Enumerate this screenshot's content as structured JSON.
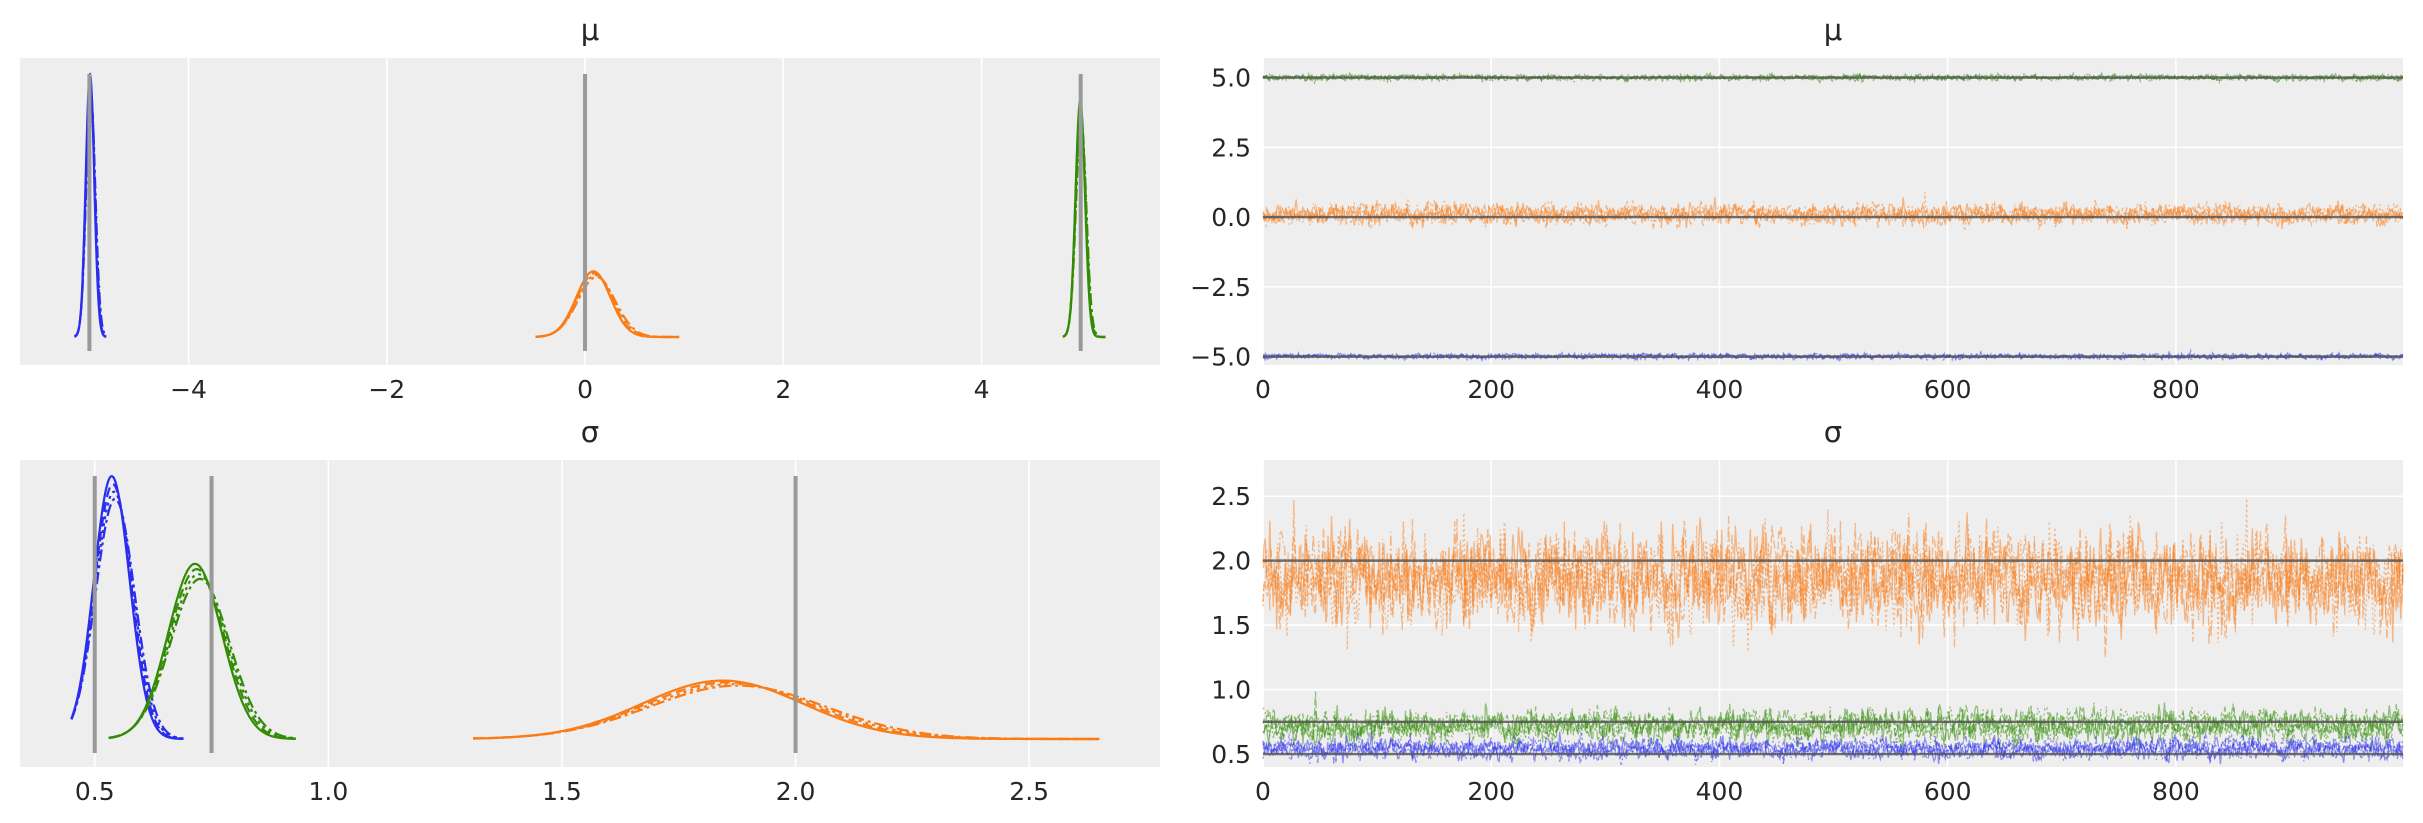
{
  "chart_data": [
    {
      "type": "density",
      "title": "μ",
      "xlim": [
        -5.7,
        5.8
      ],
      "xticks": [
        -4,
        -2,
        0,
        2,
        4
      ],
      "xtick_labels": [
        "−4",
        "−2",
        "0",
        "2",
        "4"
      ],
      "yticks_visible": false,
      "grid": true,
      "series": [
        {
          "color": "#2a2eec",
          "mean": -4.99,
          "sd": 0.045,
          "range": [
            -5.15,
            -4.83
          ],
          "ref": -5.0
        },
        {
          "color": "#fa7c17",
          "mean": 0.1,
          "sd": 0.18,
          "range": [
            -0.5,
            0.95
          ],
          "ref": 0.0
        },
        {
          "color": "#328c06",
          "mean": 5.0,
          "sd": 0.05,
          "range": [
            4.82,
            5.25
          ],
          "ref": 5.0
        }
      ]
    },
    {
      "type": "trace",
      "title": "μ",
      "xlim": [
        0,
        999
      ],
      "ylim": [
        -5.3,
        5.7
      ],
      "xticks": [
        0,
        200,
        400,
        600,
        800
      ],
      "yticks": [
        -5.0,
        -2.5,
        0.0,
        2.5,
        5.0
      ],
      "ytick_labels": [
        "−5.0",
        "−2.5",
        "0.0",
        "2.5",
        "5.0"
      ],
      "grid": true,
      "draws": 1000,
      "series": [
        {
          "color": "#328c06",
          "mean": 5.0,
          "sd": 0.05,
          "ref": 5.0
        },
        {
          "color": "#fa7c17",
          "mean": 0.1,
          "sd": 0.18,
          "ref": 0.0
        },
        {
          "color": "#2a2eec",
          "mean": -4.99,
          "sd": 0.045,
          "ref": -5.0
        }
      ]
    },
    {
      "type": "density",
      "title": "σ",
      "xlim": [
        0.34,
        2.78
      ],
      "xticks": [
        0.5,
        1.0,
        1.5,
        2.0,
        2.5
      ],
      "xtick_labels": [
        "0.5",
        "1.0",
        "1.5",
        "2.0",
        "2.5"
      ],
      "yticks_visible": false,
      "grid": true,
      "series": [
        {
          "color": "#2a2eec",
          "mean": 0.54,
          "sd": 0.04,
          "range": [
            0.45,
            0.69
          ],
          "ref": 0.5
        },
        {
          "color": "#328c06",
          "mean": 0.72,
          "sd": 0.06,
          "range": [
            0.53,
            0.93
          ],
          "ref": 0.75
        },
        {
          "color": "#fa7c17",
          "mean": 1.86,
          "sd": 0.18,
          "range": [
            1.31,
            2.65
          ],
          "ref": 2.0
        }
      ]
    },
    {
      "type": "trace",
      "title": "σ",
      "xlim": [
        0,
        999
      ],
      "ylim": [
        0.4,
        2.78
      ],
      "xticks": [
        0,
        200,
        400,
        600,
        800
      ],
      "yticks": [
        0.5,
        1.0,
        1.5,
        2.0,
        2.5
      ],
      "ytick_labels": [
        "0.5",
        "1.0",
        "1.5",
        "2.0",
        "2.5"
      ],
      "grid": true,
      "draws": 1000,
      "series": [
        {
          "color": "#fa7c17",
          "mean": 1.86,
          "sd": 0.18,
          "ref": 2.0
        },
        {
          "color": "#328c06",
          "mean": 0.72,
          "sd": 0.06,
          "ref": 0.75
        },
        {
          "color": "#2a2eec",
          "mean": 0.54,
          "sd": 0.04,
          "ref": 0.5
        }
      ]
    }
  ],
  "colors": {
    "panel_bg": "#eeeeee",
    "grid": "#ffffff",
    "ref_line_density": "#999999",
    "ref_line_trace": "#555555"
  }
}
